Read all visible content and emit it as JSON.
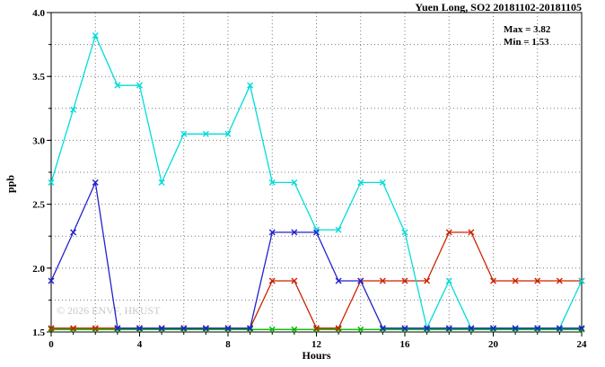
{
  "chart_data": {
    "type": "line",
    "title": "Yuen Long, SO2 20181102-20181105",
    "annotations": {
      "max": "Max = 3.82",
      "min": "Min = 1.53"
    },
    "xlabel": "Hours",
    "ylabel": "ppb",
    "watermark": "© 2026 ENVF, HKUST",
    "xlim": [
      0,
      24
    ],
    "ylim": [
      1.5,
      4.0
    ],
    "xticks": [
      {
        "v": 0,
        "label": "0"
      },
      {
        "v": 4,
        "label": "4"
      },
      {
        "v": 8,
        "label": "8"
      },
      {
        "v": 12,
        "label": "12"
      },
      {
        "v": 16,
        "label": "16"
      },
      {
        "v": 20,
        "label": "20"
      },
      {
        "v": 24,
        "label": "24"
      }
    ],
    "yticks": [
      {
        "v": 1.5,
        "label": "1.5"
      },
      {
        "v": 2.0,
        "label": "2.0"
      },
      {
        "v": 2.5,
        "label": "2.5"
      },
      {
        "v": 3.0,
        "label": "3.0"
      },
      {
        "v": 3.5,
        "label": "3.5"
      },
      {
        "v": 4.0,
        "label": "4.0"
      }
    ],
    "grid": {
      "x_step": 2,
      "y_step": 0.25,
      "style": "dotted",
      "on": true
    },
    "legend": "none",
    "x": [
      0,
      1,
      2,
      3,
      4,
      5,
      6,
      7,
      8,
      9,
      10,
      11,
      12,
      13,
      14,
      15,
      16,
      17,
      18,
      19,
      20,
      21,
      22,
      23,
      24
    ],
    "series": [
      {
        "name": "series-green",
        "color": "#00b300",
        "values": [
          1.52,
          1.52,
          1.52,
          1.52,
          1.52,
          1.52,
          1.52,
          1.52,
          1.52,
          1.52,
          1.52,
          1.52,
          1.52,
          1.52,
          1.52,
          1.52,
          1.52,
          1.52,
          1.52,
          1.52,
          1.52,
          1.52,
          1.52,
          1.52,
          1.52
        ]
      },
      {
        "name": "series-red",
        "color": "#cc2200",
        "values": [
          1.53,
          1.53,
          1.53,
          1.53,
          1.53,
          1.53,
          1.53,
          1.53,
          1.53,
          1.53,
          1.9,
          1.9,
          1.53,
          1.53,
          1.9,
          1.9,
          1.9,
          1.9,
          2.28,
          2.28,
          1.9,
          1.9,
          1.9,
          1.9,
          1.9
        ]
      },
      {
        "name": "series-cyan",
        "color": "#00dcdc",
        "values": [
          2.67,
          3.24,
          3.82,
          3.43,
          3.43,
          2.67,
          3.05,
          3.05,
          3.05,
          3.43,
          2.67,
          2.67,
          2.3,
          2.3,
          2.67,
          2.67,
          2.28,
          1.53,
          1.9,
          1.53,
          1.53,
          1.53,
          1.53,
          1.53,
          1.9
        ]
      },
      {
        "name": "series-blue",
        "color": "#2222cc",
        "values": [
          1.9,
          2.28,
          2.67,
          1.53,
          1.53,
          1.53,
          1.53,
          1.53,
          1.53,
          1.53,
          2.28,
          2.28,
          2.28,
          1.9,
          1.9,
          1.53,
          1.53,
          1.53,
          1.53,
          1.53,
          1.53,
          1.53,
          1.53,
          1.53,
          1.53
        ]
      }
    ]
  }
}
